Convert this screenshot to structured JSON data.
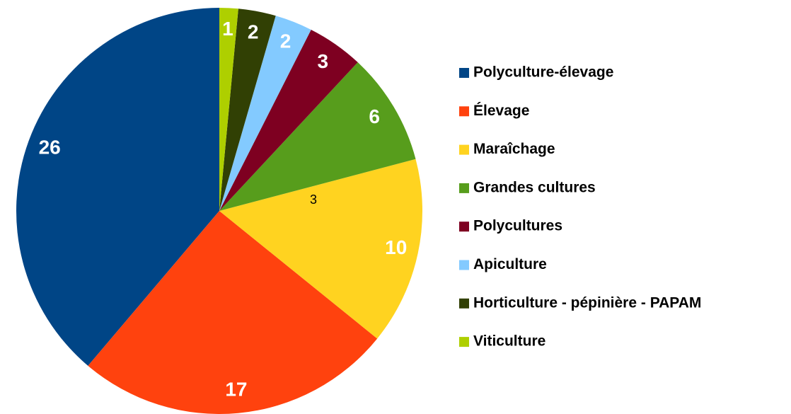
{
  "chart_data": {
    "type": "pie",
    "categories": [
      "Polyculture-élevage",
      "Élevage",
      "Maraîchage",
      "Grandes cultures",
      "Polycultures",
      "Apiculture",
      "Horticulture - pépinière - PAPAM",
      "Viticulture"
    ],
    "values": [
      26,
      17,
      10,
      6,
      3,
      2,
      2,
      1
    ],
    "colors": [
      "#004586",
      "#ff420e",
      "#ffd320",
      "#579d1c",
      "#7e0021",
      "#83caff",
      "#314004",
      "#aecf00"
    ],
    "direction": "counterclockwise",
    "legend": "right",
    "annotation": "3"
  }
}
